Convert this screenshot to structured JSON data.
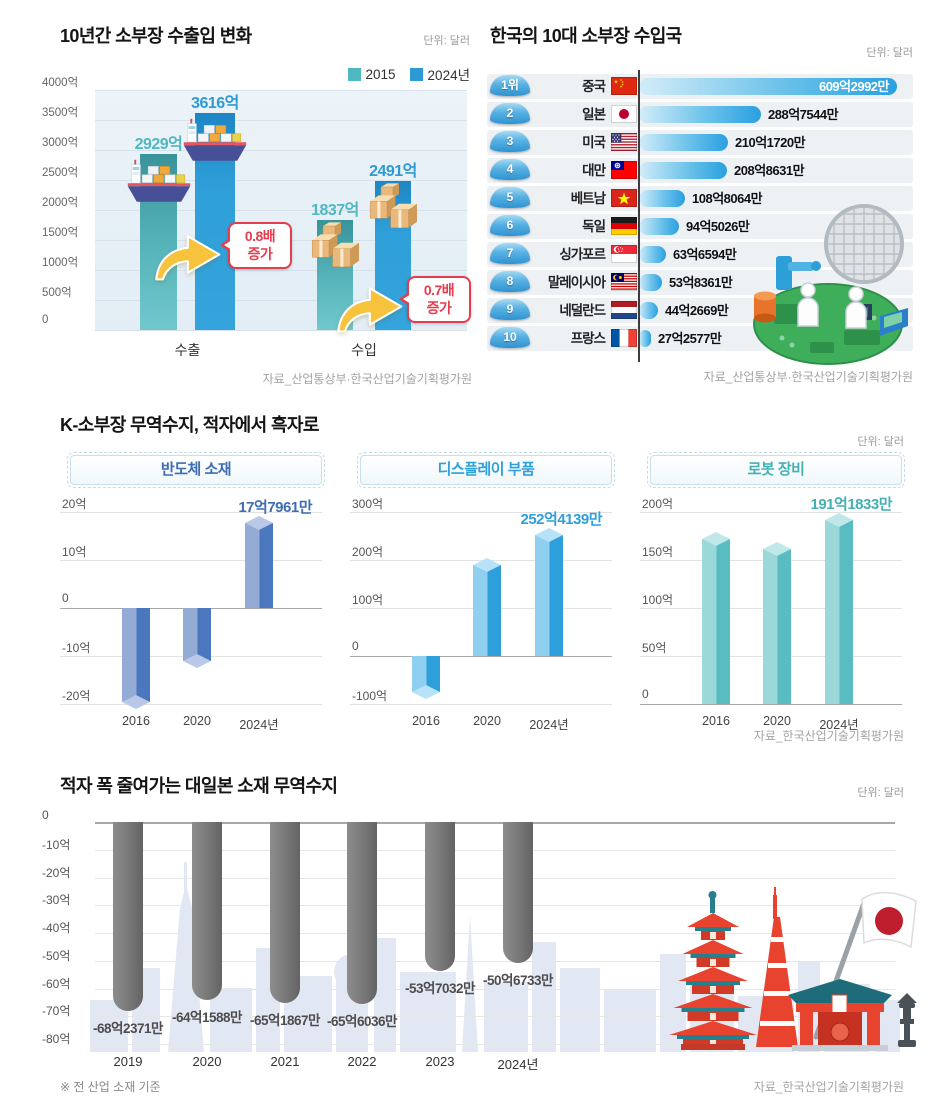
{
  "sections": {
    "middle": {
      "title": "K-소부장 무역수지, 적자에서 흑자로",
      "unit": "단위: 달러",
      "source": "자료_한국산업기술기획평가원"
    }
  },
  "chart_data": [
    {
      "type": "bar",
      "title": "10년간 소부장 수출입 변화",
      "unit": "단위: 달러",
      "source": "자료_산업통상부·한국산업기술기획평가원",
      "categories": [
        "수출",
        "수입"
      ],
      "series": [
        {
          "name": "2015",
          "color": "#4fb8c0",
          "values": [
            2929,
            1837
          ],
          "value_labels": [
            "2929억",
            "1837억"
          ]
        },
        {
          "name": "2024년",
          "color": "#2e9ad5",
          "values": [
            3616,
            2491
          ],
          "value_labels": [
            "3616억",
            "2491억"
          ]
        }
      ],
      "ylim": [
        0,
        4000
      ],
      "y_ticks": [
        "4000억",
        "3500억",
        "3000억",
        "2500억",
        "2000억",
        "1500억",
        "1000억",
        "500억",
        "0"
      ],
      "annotations": [
        {
          "line1": "0.8배",
          "line2": "증가",
          "color": "#e73c4e"
        },
        {
          "line1": "0.7배",
          "line2": "증가",
          "color": "#e73c4e"
        }
      ],
      "grid": true,
      "legend_position": "top-right"
    },
    {
      "type": "bar-horizontal",
      "title": "한국의 10대 소부장 수입국",
      "unit": "단위: 달러",
      "source": "자료_산업통상부·한국산업기술기획평가원",
      "bar_color": "#29a0e0",
      "rows": [
        {
          "rank": "1위",
          "country": "중국",
          "flag": "cn",
          "value": 609.2992,
          "label": "609억2992만"
        },
        {
          "rank": "2",
          "country": "일본",
          "flag": "jp",
          "value": 288.7544,
          "label": "288억7544만"
        },
        {
          "rank": "3",
          "country": "미국",
          "flag": "us",
          "value": 210.172,
          "label": "210억1720만"
        },
        {
          "rank": "4",
          "country": "대만",
          "flag": "tw",
          "value": 208.8631,
          "label": "208억8631만"
        },
        {
          "rank": "5",
          "country": "베트남",
          "flag": "vn",
          "value": 108.8064,
          "label": "108억8064만"
        },
        {
          "rank": "6",
          "country": "독일",
          "flag": "de",
          "value": 94.5026,
          "label": "94억5026만"
        },
        {
          "rank": "7",
          "country": "싱가포르",
          "flag": "sg",
          "value": 63.6594,
          "label": "63억6594만"
        },
        {
          "rank": "8",
          "country": "말레이시아",
          "flag": "my",
          "value": 53.8361,
          "label": "53억8361만"
        },
        {
          "rank": "9",
          "country": "네덜란드",
          "flag": "nl",
          "value": 44.2669,
          "label": "44억2669만"
        },
        {
          "rank": "10",
          "country": "프랑스",
          "flag": "fr",
          "value": 27.2577,
          "label": "27억2577만"
        }
      ]
    },
    {
      "type": "bar",
      "title": "반도체 소재",
      "categories": [
        "2016",
        "2020",
        "2024년"
      ],
      "values": [
        -19.5,
        -11,
        17.7961
      ],
      "highlight_label": "17억7961만",
      "ylim": [
        -20,
        20
      ],
      "y_ticks": [
        "20억",
        "10억",
        "0",
        "-10억",
        "-20억"
      ],
      "accent": "#3f6db2",
      "bar_colors": {
        "light": "#94abd6",
        "dark": "#4a77bd",
        "cap": "#b9c8e6"
      }
    },
    {
      "type": "bar",
      "title": "디스플레이 부품",
      "categories": [
        "2016",
        "2020",
        "2024년"
      ],
      "values": [
        -75,
        190,
        252.4139
      ],
      "highlight_label": "252억4139만",
      "ylim": [
        -100,
        300
      ],
      "y_ticks": [
        "300억",
        "200억",
        "100억",
        "0",
        "-100억"
      ],
      "accent": "#2d9fda",
      "bar_colors": {
        "light": "#8fd0f0",
        "dark": "#2d9fda",
        "cap": "#b8e2f7"
      }
    },
    {
      "type": "bar",
      "title": "로봇 장비",
      "categories": [
        "2016",
        "2020",
        "2024년"
      ],
      "values": [
        172,
        161,
        191.1833
      ],
      "highlight_label": "191억1833만",
      "ylim": [
        0,
        200
      ],
      "y_ticks": [
        "200억",
        "150억",
        "100억",
        "50억",
        "0"
      ],
      "accent": "#45b0b4",
      "bar_colors": {
        "light": "#9ad8da",
        "dark": "#58bcc0",
        "cap": "#c0e8e9"
      }
    },
    {
      "type": "bar",
      "title": "적자 폭 줄여가는 대일본 소재 무역수지",
      "unit": "단위: 달러",
      "source": "자료_한국산업기술기획평가원",
      "footnote": "※ 전 산업 소재 기준",
      "bar_color": "#787878",
      "categories": [
        "2019",
        "2020",
        "2021",
        "2022",
        "2023",
        "2024년"
      ],
      "values": [
        -68.2371,
        -64.1588,
        -65.1867,
        -65.6036,
        -53.7032,
        -50.6733
      ],
      "value_labels": [
        "-68억2371만",
        "-64억1588만",
        "-65억1867만",
        "-65억6036만",
        "-53억7032만",
        "-50억6733만"
      ],
      "ylim": [
        -80,
        0
      ],
      "y_ticks": [
        "0",
        "-10억",
        "-20억",
        "-30억",
        "-40억",
        "-50억",
        "-60억",
        "-70억",
        "-80억"
      ]
    }
  ]
}
